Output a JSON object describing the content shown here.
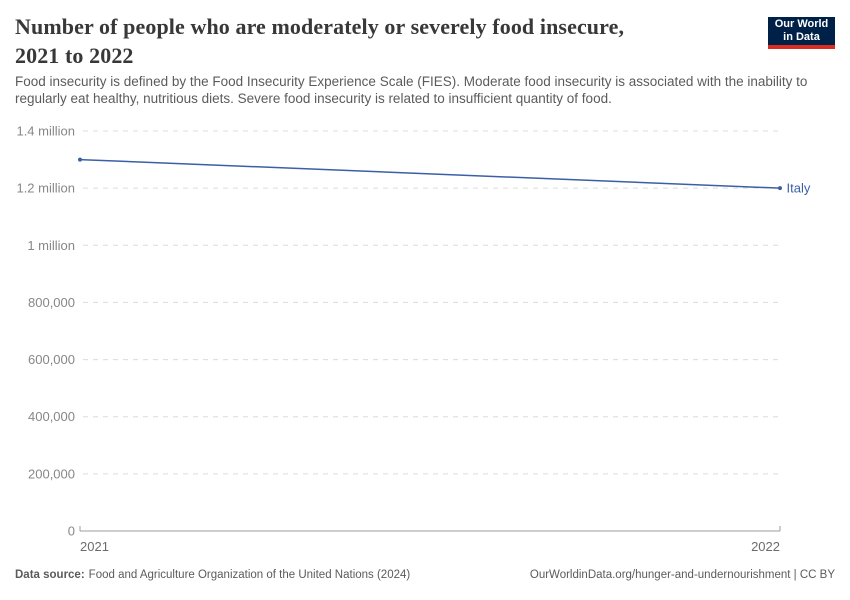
{
  "header": {
    "title_line1": "Number of people who are moderately or severely food insecure,",
    "title_line2": "2021 to 2022",
    "subtitle": "Food insecurity is defined by the Food Insecurity Experience Scale (FIES). Moderate food insecurity is associated with the inability to regularly eat healthy, nutritious diets. Severe food insecurity is related to insufficient quantity of food.",
    "logo_line1": "Our World",
    "logo_line2": "in Data"
  },
  "chart_data": {
    "type": "line",
    "x": [
      2021,
      2022
    ],
    "series": [
      {
        "name": "Italy",
        "values": [
          1300000,
          1200000
        ],
        "color": "#3b5fa7"
      }
    ],
    "ylim": [
      0,
      1400000
    ],
    "ytick_values": [
      0,
      200000,
      400000,
      600000,
      800000,
      1000000,
      1200000,
      1400000
    ],
    "ytick_labels": [
      "0",
      "200,000",
      "400,000",
      "600,000",
      "800,000",
      "1 million",
      "1.2 million",
      "1.4 million"
    ],
    "xtick_labels": [
      "2021",
      "2022"
    ],
    "grid": "horizontal-dashed",
    "legend": "line-end-label"
  },
  "footer": {
    "datasource_label": "Data source:",
    "datasource_text": "Food and Agriculture Organization of the United Nations (2024)",
    "link_text": "OurWorldinData.org/hunger-and-undernourishment | CC BY"
  },
  "colors": {
    "series_line": "#3b5fa7",
    "logo_bg": "#002147",
    "logo_stripe": "#dc2c22",
    "grid": "#dcdcdc",
    "axis": "#9c9c9c",
    "title_text": "#383838",
    "subtitle_text": "#5b5b5b"
  }
}
